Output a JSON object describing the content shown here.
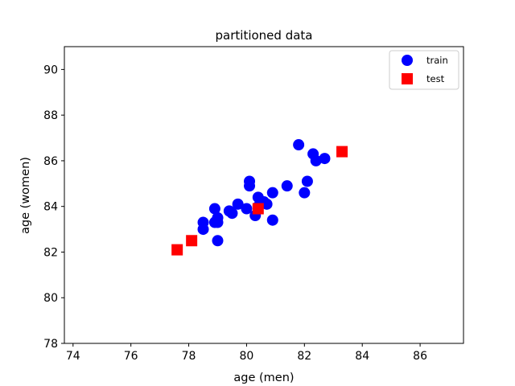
{
  "chart_data": {
    "type": "scatter",
    "title": "partitioned data",
    "xlabel": "age (men)",
    "ylabel": "age (women)",
    "xlim": [
      73.7,
      87.5
    ],
    "ylim": [
      78,
      91
    ],
    "xticks": [
      74,
      76,
      78,
      80,
      82,
      84,
      86
    ],
    "yticks": [
      78,
      80,
      82,
      84,
      86,
      88,
      90
    ],
    "grid": false,
    "legend_position": "top-right",
    "series": [
      {
        "name": "train",
        "marker": "circle",
        "color": "#0000ff",
        "points": [
          [
            81.8,
            86.7
          ],
          [
            82.3,
            86.3
          ],
          [
            82.4,
            86.0
          ],
          [
            82.7,
            86.1
          ],
          [
            82.1,
            85.1
          ],
          [
            81.4,
            84.9
          ],
          [
            82.0,
            84.6
          ],
          [
            80.1,
            85.1
          ],
          [
            80.1,
            84.9
          ],
          [
            80.9,
            84.6
          ],
          [
            80.4,
            84.4
          ],
          [
            80.6,
            84.2
          ],
          [
            80.7,
            84.1
          ],
          [
            80.4,
            84.0
          ],
          [
            79.7,
            84.1
          ],
          [
            80.0,
            83.9
          ],
          [
            79.4,
            83.8
          ],
          [
            79.5,
            83.7
          ],
          [
            78.9,
            83.9
          ],
          [
            80.3,
            83.6
          ],
          [
            80.9,
            83.4
          ],
          [
            79.0,
            83.5
          ],
          [
            78.9,
            83.3
          ],
          [
            79.0,
            83.3
          ],
          [
            78.5,
            83.3
          ],
          [
            78.5,
            83.0
          ],
          [
            79.0,
            82.5
          ]
        ]
      },
      {
        "name": "test",
        "marker": "square",
        "color": "#ff0000",
        "points": [
          [
            83.3,
            86.4
          ],
          [
            80.4,
            83.9
          ],
          [
            78.1,
            82.5
          ],
          [
            77.6,
            82.1
          ]
        ]
      }
    ]
  }
}
